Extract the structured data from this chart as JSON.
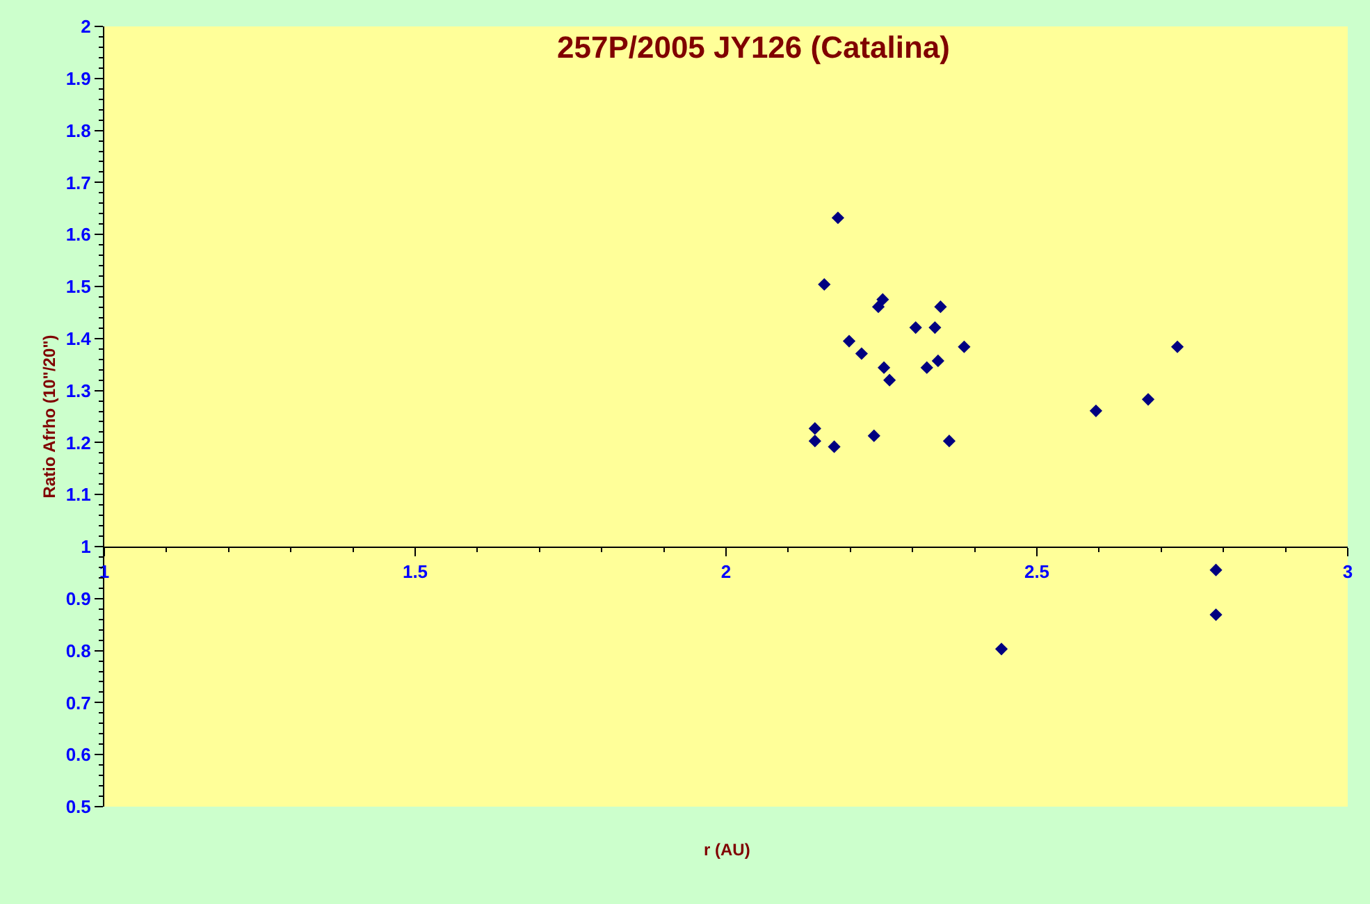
{
  "chart_data": {
    "type": "scatter",
    "title": "257P/2005 JY126 (Catalina)",
    "xlabel": "r (AU)",
    "ylabel": "Ratio Afrho (10\"/20\")",
    "x": [
      2.18,
      2.158,
      2.252,
      2.245,
      2.345,
      2.305,
      2.336,
      2.198,
      2.383,
      2.218,
      2.254,
      2.323,
      2.341,
      2.263,
      2.143,
      2.143,
      2.174,
      2.238,
      2.359,
      2.595,
      2.679,
      2.726,
      2.788,
      2.788,
      2.443
    ],
    "series": [
      {
        "color": "#000080",
        "values": [
          1.632,
          1.504,
          1.475,
          1.461,
          1.461,
          1.421,
          1.421,
          1.395,
          1.384,
          1.371,
          1.344,
          1.344,
          1.357,
          1.32,
          1.227,
          1.203,
          1.192,
          1.213,
          1.203,
          1.261,
          1.283,
          1.384,
          0.955,
          0.869,
          0.803
        ]
      }
    ],
    "marker": "diamond",
    "xlim": [
      1,
      3
    ],
    "xticks": [
      1,
      1.5,
      2,
      2.5,
      3
    ],
    "ylim": [
      0.5,
      2
    ],
    "yticks": [
      0.5,
      0.6,
      0.7,
      0.8,
      0.9,
      1,
      1.1,
      1.2,
      1.3,
      1.4,
      1.5,
      1.6,
      1.7,
      1.8,
      1.9,
      2
    ]
  }
}
